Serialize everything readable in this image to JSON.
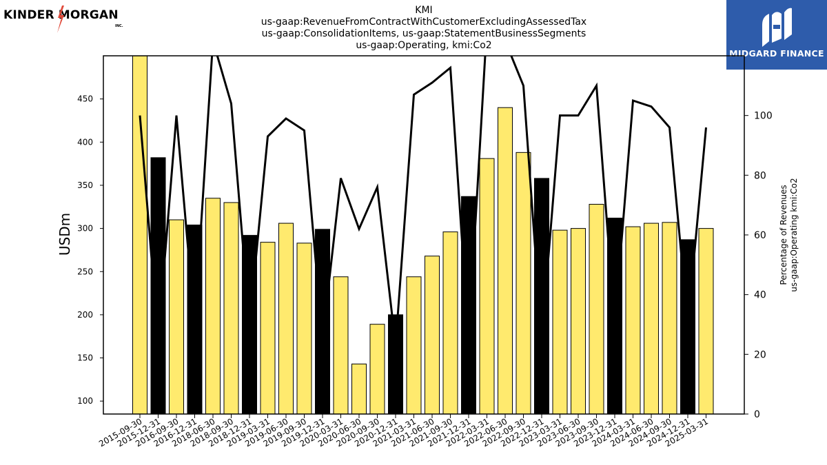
{
  "logos": {
    "left_brand_left": "KINDER",
    "left_brand_right": "MORGAN",
    "left_brand_suffix": "INC.",
    "right_brand": "MIDGARD FINANCE"
  },
  "chart_data": {
    "type": "bar",
    "title_lines": [
      "KMI",
      "us-gaap:RevenueFromContractWithCustomerExcludingAssessedTax",
      "us-gaap:ConsolidationItems, us-gaap:StatementBusinessSegments",
      "us-gaap:Operating, kmi:Co2"
    ],
    "ylabel": "USDm",
    "y2label_lines": [
      "Percentage of Revenues",
      "us-gaap:Operating kmi:Co2"
    ],
    "ylim": [
      85,
      500
    ],
    "y2lim": [
      0,
      120
    ],
    "yticks": [
      100,
      150,
      200,
      250,
      300,
      350,
      400,
      450
    ],
    "y2ticks": [
      0,
      20,
      40,
      60,
      80,
      100
    ],
    "grid": false,
    "categories": [
      "2015-09-30",
      "2015-12-31",
      "2016-09-30",
      "2016-12-31",
      "2018-06-30",
      "2018-09-30",
      "2018-12-31",
      "2019-03-31",
      "2019-06-30",
      "2019-09-30",
      "2019-12-31",
      "2020-03-31",
      "2020-06-30",
      "2020-09-30",
      "2020-12-31",
      "2021-03-31",
      "2021-06-30",
      "2021-09-30",
      "2021-12-31",
      "2022-03-31",
      "2022-06-30",
      "2022-09-30",
      "2022-12-31",
      "2023-03-31",
      "2023-06-30",
      "2023-09-30",
      "2023-12-31",
      "2024-03-31",
      "2024-06-30",
      "2024-09-30",
      "2024-12-31",
      "2025-03-31"
    ],
    "bars": {
      "values": [
        500,
        382,
        310,
        304,
        335,
        330,
        292,
        284,
        306,
        283,
        299,
        244,
        143,
        189,
        200,
        244,
        268,
        296,
        337,
        381,
        440,
        388,
        358,
        298,
        300,
        328,
        312,
        302,
        306,
        307,
        287,
        300
      ],
      "q4_flags": [
        false,
        true,
        false,
        true,
        false,
        false,
        true,
        false,
        false,
        false,
        true,
        false,
        false,
        false,
        true,
        false,
        false,
        false,
        true,
        false,
        false,
        false,
        true,
        false,
        false,
        false,
        true,
        false,
        false,
        false,
        true,
        false
      ],
      "color_regular": "#ffea6e",
      "color_q4": "#000000"
    },
    "line": {
      "values": [
        100,
        25,
        100,
        30,
        125,
        104,
        30,
        93,
        99,
        95,
        25,
        79,
        62,
        76,
        23,
        107,
        111,
        116,
        25,
        130,
        125,
        110,
        25,
        100,
        100,
        110,
        30,
        105,
        103,
        96,
        30,
        96
      ],
      "color": "#000000"
    }
  }
}
